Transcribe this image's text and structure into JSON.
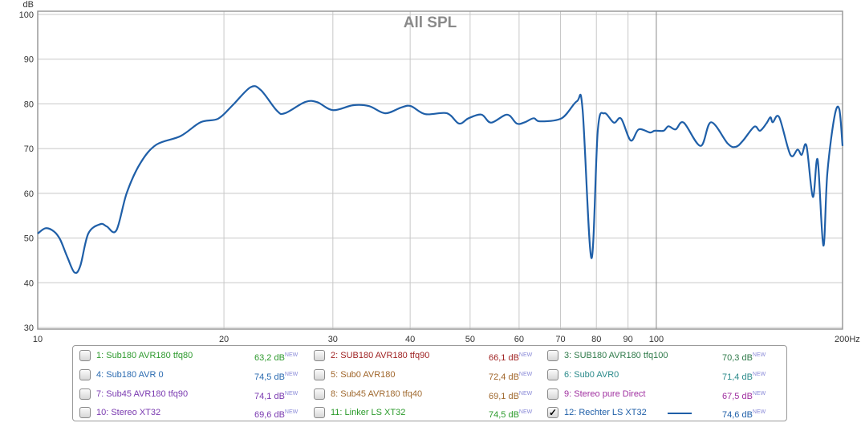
{
  "chart_data": {
    "type": "line",
    "title": "All SPL",
    "ylabel": "dB",
    "xlabel": "",
    "xscale": "log",
    "xlim": [
      10,
      200
    ],
    "ylim": [
      30,
      100
    ],
    "grid": true,
    "yticks": [
      "30",
      "40",
      "50",
      "60",
      "70",
      "80",
      "90",
      "100"
    ],
    "ytick_values": [
      30,
      40,
      50,
      60,
      70,
      80,
      90,
      100
    ],
    "xticks": [
      "10",
      "20",
      "30",
      "40",
      "50",
      "60",
      "70",
      "80",
      "90",
      "100",
      "200Hz"
    ],
    "xtick_values": [
      10,
      20,
      30,
      40,
      50,
      60,
      70,
      80,
      90,
      100,
      200
    ],
    "series": [
      {
        "name": "12: Rechter LS XT32",
        "color": "#1f5fa8",
        "x": [
          10.0,
          10.3,
          10.62,
          10.87,
          11.17,
          11.47,
          11.72,
          12.07,
          12.62,
          12.93,
          13.4,
          13.93,
          14.66,
          15.56,
          17.02,
          18.34,
          19.58,
          20.66,
          22.07,
          22.94,
          24.35,
          25.09,
          27.04,
          28.28,
          30.01,
          32.34,
          34.33,
          36.45,
          38.69,
          40.1,
          42.32,
          45.87,
          47.98,
          49.73,
          52.16,
          54.06,
          57.39,
          59.48,
          61.29,
          63.34,
          64.87,
          70.32,
          74.42,
          75.99,
          78.53,
          80.43,
          82.37,
          85.37,
          87.7,
          90.91,
          93.66,
          97.66,
          99.43,
          102.75,
          104.61,
          107.45,
          110.73,
          117.9,
          122.6,
          130.5,
          134.4,
          138.1,
          144.0,
          147.1,
          150.6,
          152.9,
          154.3,
          158.0,
          164.7,
          169.2,
          171.8,
          174.9,
          179.1,
          182.3,
          186.2,
          189.0,
          194.1,
          197.6,
          200
        ],
        "y": [
          51.0,
          52.2,
          51.5,
          49.7,
          45.7,
          42.3,
          43.8,
          51.0,
          53.1,
          52.6,
          51.7,
          60.1,
          66.8,
          70.9,
          72.8,
          75.9,
          76.7,
          79.7,
          83.7,
          83.1,
          78.5,
          77.9,
          80.4,
          80.4,
          78.6,
          79.7,
          79.5,
          77.9,
          79.2,
          79.5,
          77.7,
          77.9,
          75.6,
          76.8,
          77.6,
          75.8,
          77.6,
          75.6,
          75.9,
          76.8,
          76.1,
          76.8,
          80.6,
          78.8,
          45.5,
          74.1,
          77.9,
          75.8,
          76.7,
          71.8,
          74.3,
          73.6,
          74.0,
          74.0,
          75.0,
          74.3,
          75.8,
          70.6,
          75.9,
          71.1,
          70.4,
          71.8,
          74.9,
          74.0,
          75.6,
          77.0,
          75.9,
          77.0,
          68.6,
          69.8,
          68.6,
          70.6,
          59.2,
          67.5,
          48.3,
          64.6,
          77.2,
          78.8,
          70.6
        ]
      }
    ]
  },
  "legend": [
    {
      "label": "1: Sub180 AVR180 tfq80",
      "value": "63,2 dB",
      "badge": "NEW",
      "color": "#2e9a2e",
      "checked": false
    },
    {
      "label": "2: SUB180 AVR180 tfq90",
      "value": "66,1 dB",
      "badge": "NEW",
      "color": "#a02424",
      "checked": false
    },
    {
      "label": "3: SUB180 AVR180 tfq100",
      "value": "70,3 dB",
      "badge": "NEW",
      "color": "#2f7a4a",
      "checked": false
    },
    {
      "label": "4: Sub180 AVR 0",
      "value": "74,5 dB",
      "badge": "NEW",
      "color": "#2a6ab0",
      "checked": false
    },
    {
      "label": "5: Sub0 AVR180",
      "value": "72,4 dB",
      "badge": "NEW",
      "color": "#a0652a",
      "checked": false
    },
    {
      "label": "6: Sub0 AVR0",
      "value": "71,4 dB",
      "badge": "NEW",
      "color": "#2a8a8a",
      "checked": false
    },
    {
      "label": "7: Sub45 AVR180 tfq90",
      "value": "74,1 dB",
      "badge": "NEW",
      "color": "#7a3ab0",
      "checked": false
    },
    {
      "label": "8: Sub45 AVR180 tfq40",
      "value": "69,1 dB",
      "badge": "NEW",
      "color": "#a06a30",
      "checked": false
    },
    {
      "label": "9: Stereo pure Direct",
      "value": "67,5 dB",
      "badge": "NEW",
      "color": "#a030a0",
      "checked": false
    },
    {
      "label": "10: Stereo XT32",
      "value": "69,6 dB",
      "badge": "NEW",
      "color": "#7a3ab0",
      "checked": false
    },
    {
      "label": "11: Linker LS XT32",
      "value": "74,5 dB",
      "badge": "NEW",
      "color": "#2a9a2a",
      "checked": false
    },
    {
      "label": "12: Rechter LS XT32",
      "value": "74,6 dB",
      "badge": "NEW",
      "color": "#1f5fa8",
      "checked": true
    }
  ],
  "check_glyph": "✓"
}
